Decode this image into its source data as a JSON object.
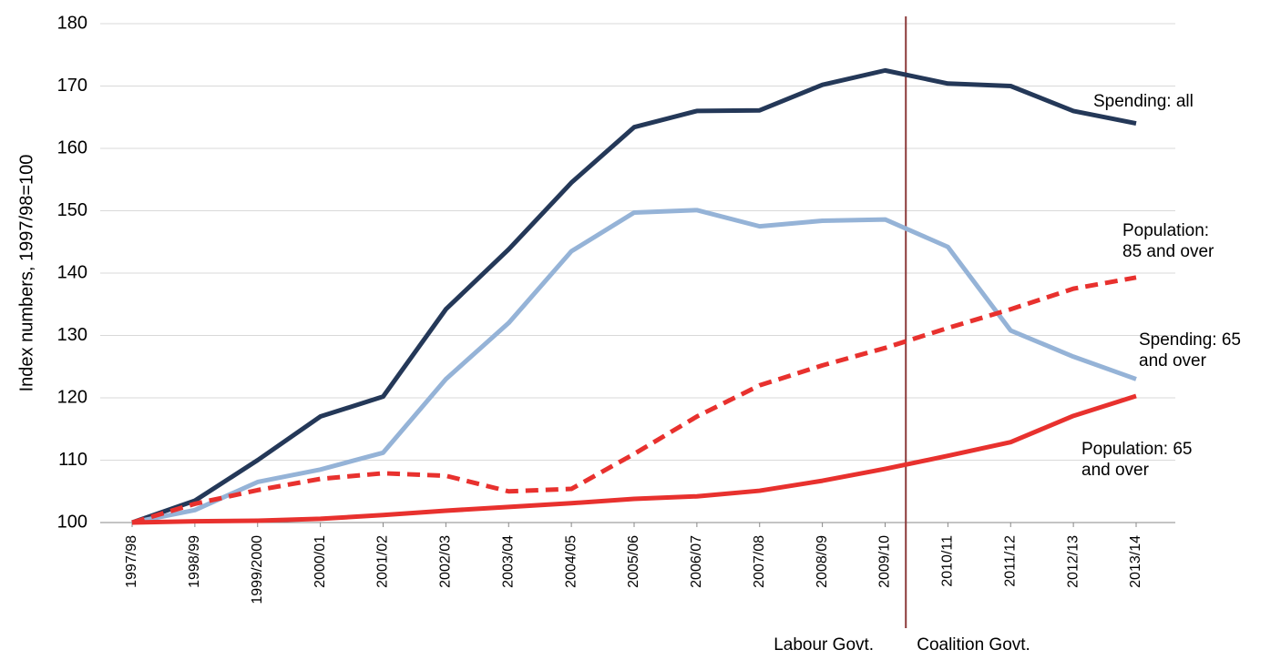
{
  "chart_data": {
    "type": "line",
    "y_label": "Index numbers, 1997/98=100",
    "categories": [
      "1997/98",
      "1998/99",
      "1999/2000",
      "2000/01",
      "2001/02",
      "2002/03",
      "2003/04",
      "2004/05",
      "2005/06",
      "2006/07",
      "2007/08",
      "2008/09",
      "2009/10",
      "2010/11",
      "2011/12",
      "2012/13",
      "2013/14"
    ],
    "series": [
      {
        "name": "Spending: all",
        "color": "#243858",
        "dashed": false,
        "values": [
          100,
          103.5,
          110,
          117,
          120.2,
          134.2,
          143.8,
          154.5,
          163.4,
          166,
          166.1,
          170.2,
          172.5,
          170.4,
          170,
          166,
          164
        ]
      },
      {
        "name": "Spending: 65\nand over",
        "color": "#95b3d7",
        "dashed": false,
        "values": [
          100,
          102,
          106.5,
          108.5,
          111.2,
          123,
          132,
          143.5,
          149.7,
          150.1,
          147.5,
          148.4,
          148.6,
          144.2,
          130.8,
          126.6,
          123
        ]
      },
      {
        "name": "Population:\n85 and over",
        "color": "#e8312e",
        "dashed": true,
        "values": [
          100,
          103,
          105.2,
          107,
          107.9,
          107.5,
          105,
          105.4,
          111,
          117,
          122,
          125.2,
          128,
          131.2,
          134.2,
          137.5,
          139.3
        ]
      },
      {
        "name": "Population: 65\nand over",
        "color": "#e8312e",
        "dashed": false,
        "values": [
          100,
          100.2,
          100.3,
          100.6,
          101.2,
          101.9,
          102.5,
          103.1,
          103.8,
          104.2,
          105.1,
          106.7,
          108.6,
          110.7,
          112.9,
          117.1,
          120.3
        ]
      }
    ],
    "annotations": [
      "Labour Govt.",
      "Coalition Govt."
    ],
    "ylim": [
      100,
      180
    ],
    "yticks": [
      100,
      110,
      120,
      130,
      140,
      150,
      160,
      170,
      180
    ],
    "grid": true
  }
}
